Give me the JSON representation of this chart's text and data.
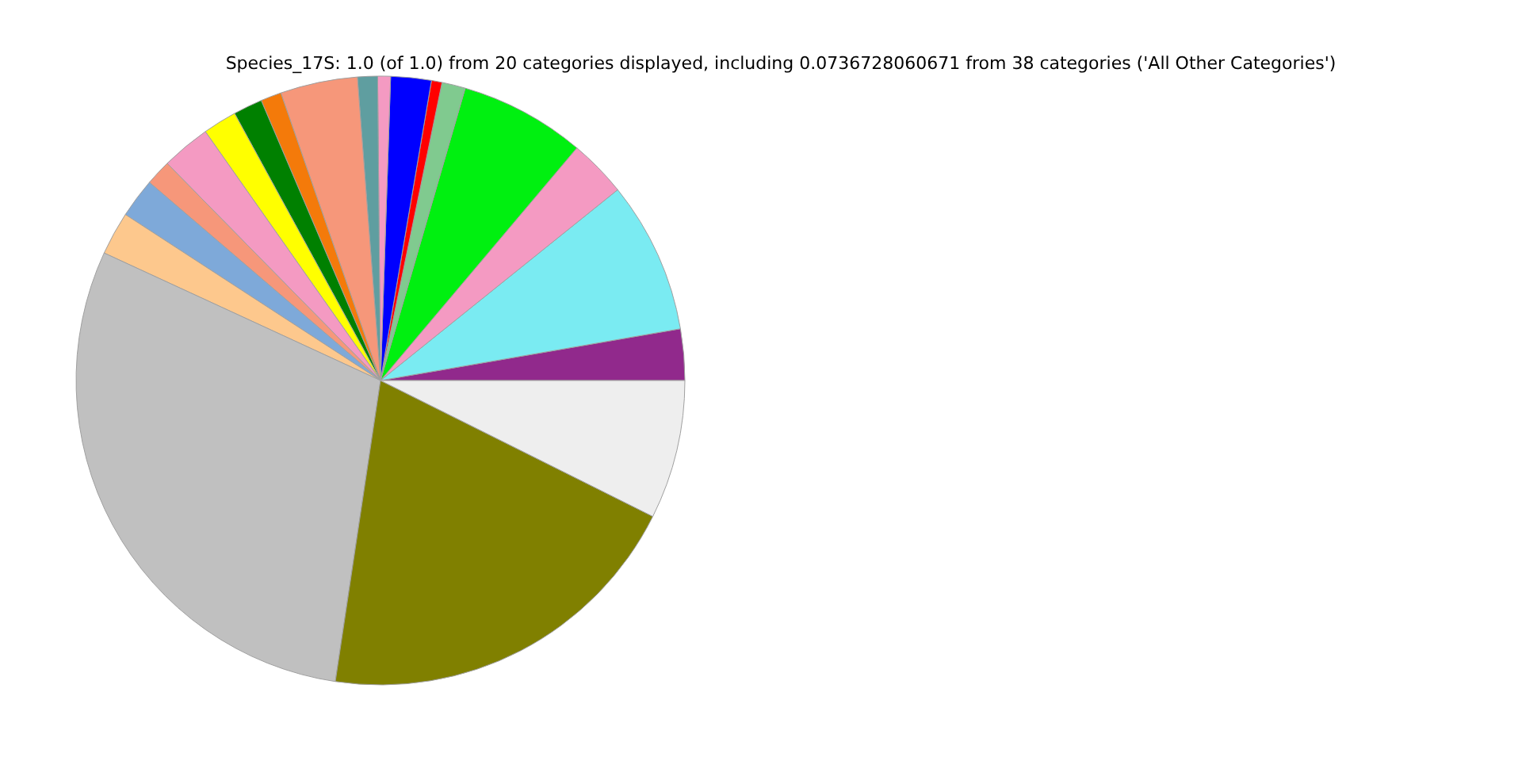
{
  "chart_data": {
    "type": "pie",
    "title": "Species_17S: 1.0 (of 1.0) from 20 categories displayed, including 0.0736728060671 from 38 categories ('All Other Categories')",
    "categories": [
      null,
      null,
      null,
      null,
      null,
      null,
      null,
      null,
      null,
      null,
      null,
      null,
      null,
      null,
      null,
      null,
      null,
      null,
      null,
      null
    ],
    "values": [
      2.72,
      8.06,
      3.06,
      6.67,
      1.25,
      0.56,
      2.15,
      0.68,
      1.06,
      4.1,
      1.1,
      1.55,
      1.8,
      2.6,
      1.36,
      2.1,
      2.3,
      29.51,
      20.0,
      7.37
    ],
    "colors": [
      "#91298c",
      "#7aebf2",
      "#f49ac2",
      "#00f010",
      "#80ca8f",
      "#ff0000",
      "#0000ff",
      "#f49ac2",
      "#5f9ea0",
      "#f6977a",
      "#f47a0a",
      "#008000",
      "#ffff00",
      "#f49ac2",
      "#f6977a",
      "#7ea9d9",
      "#fdc88d",
      "#c0c0c0",
      "#808000",
      "#eeeeee"
    ]
  }
}
